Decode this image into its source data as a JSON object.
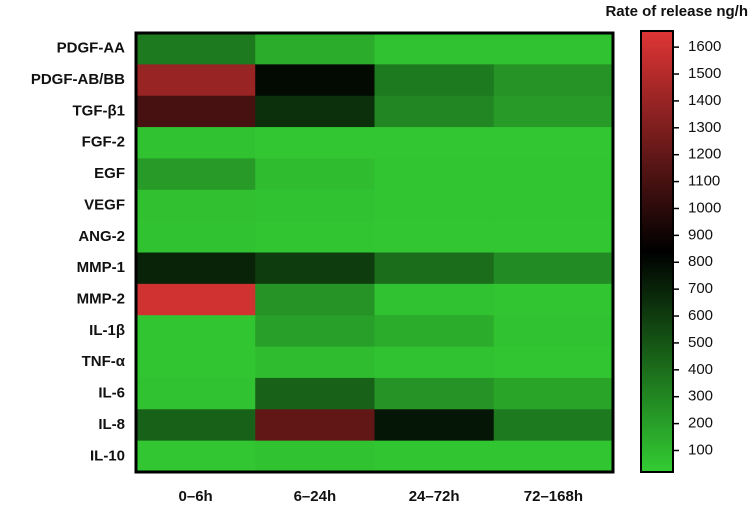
{
  "chart_data": {
    "type": "heatmap",
    "colorbar_title": "Rate of release ng/h",
    "rows": [
      "PDGF-AA",
      "PDGF-AB/BB",
      "TGF-β1",
      "FGF-2",
      "EGF",
      "VEGF",
      "ANG-2",
      "MMP-1",
      "MMP-2",
      "IL-1β",
      "TNF-α",
      "IL-6",
      "IL-8",
      "IL-10"
    ],
    "columns": [
      "0–6h",
      "6–24h",
      "24–72h",
      "72–168h"
    ],
    "values": [
      [
        350,
        150,
        60,
        60
      ],
      [
        1400,
        800,
        350,
        250
      ],
      [
        1100,
        650,
        300,
        220
      ],
      [
        60,
        40,
        40,
        40
      ],
      [
        220,
        80,
        50,
        50
      ],
      [
        70,
        60,
        50,
        50
      ],
      [
        60,
        50,
        40,
        40
      ],
      [
        700,
        600,
        400,
        280
      ],
      [
        1600,
        250,
        60,
        50
      ],
      [
        50,
        200,
        150,
        60
      ],
      [
        50,
        80,
        60,
        50
      ],
      [
        60,
        450,
        250,
        180
      ],
      [
        450,
        1200,
        750,
        350
      ],
      [
        40,
        60,
        50,
        50
      ]
    ],
    "colors": [
      "#33cc33",
      "#000000",
      "#e03535"
    ],
    "zlim": [
      20,
      1660
    ],
    "zticks": [
      100,
      200,
      300,
      400,
      500,
      600,
      700,
      800,
      900,
      1000,
      1100,
      1200,
      1300,
      1400,
      1500,
      1600
    ]
  }
}
